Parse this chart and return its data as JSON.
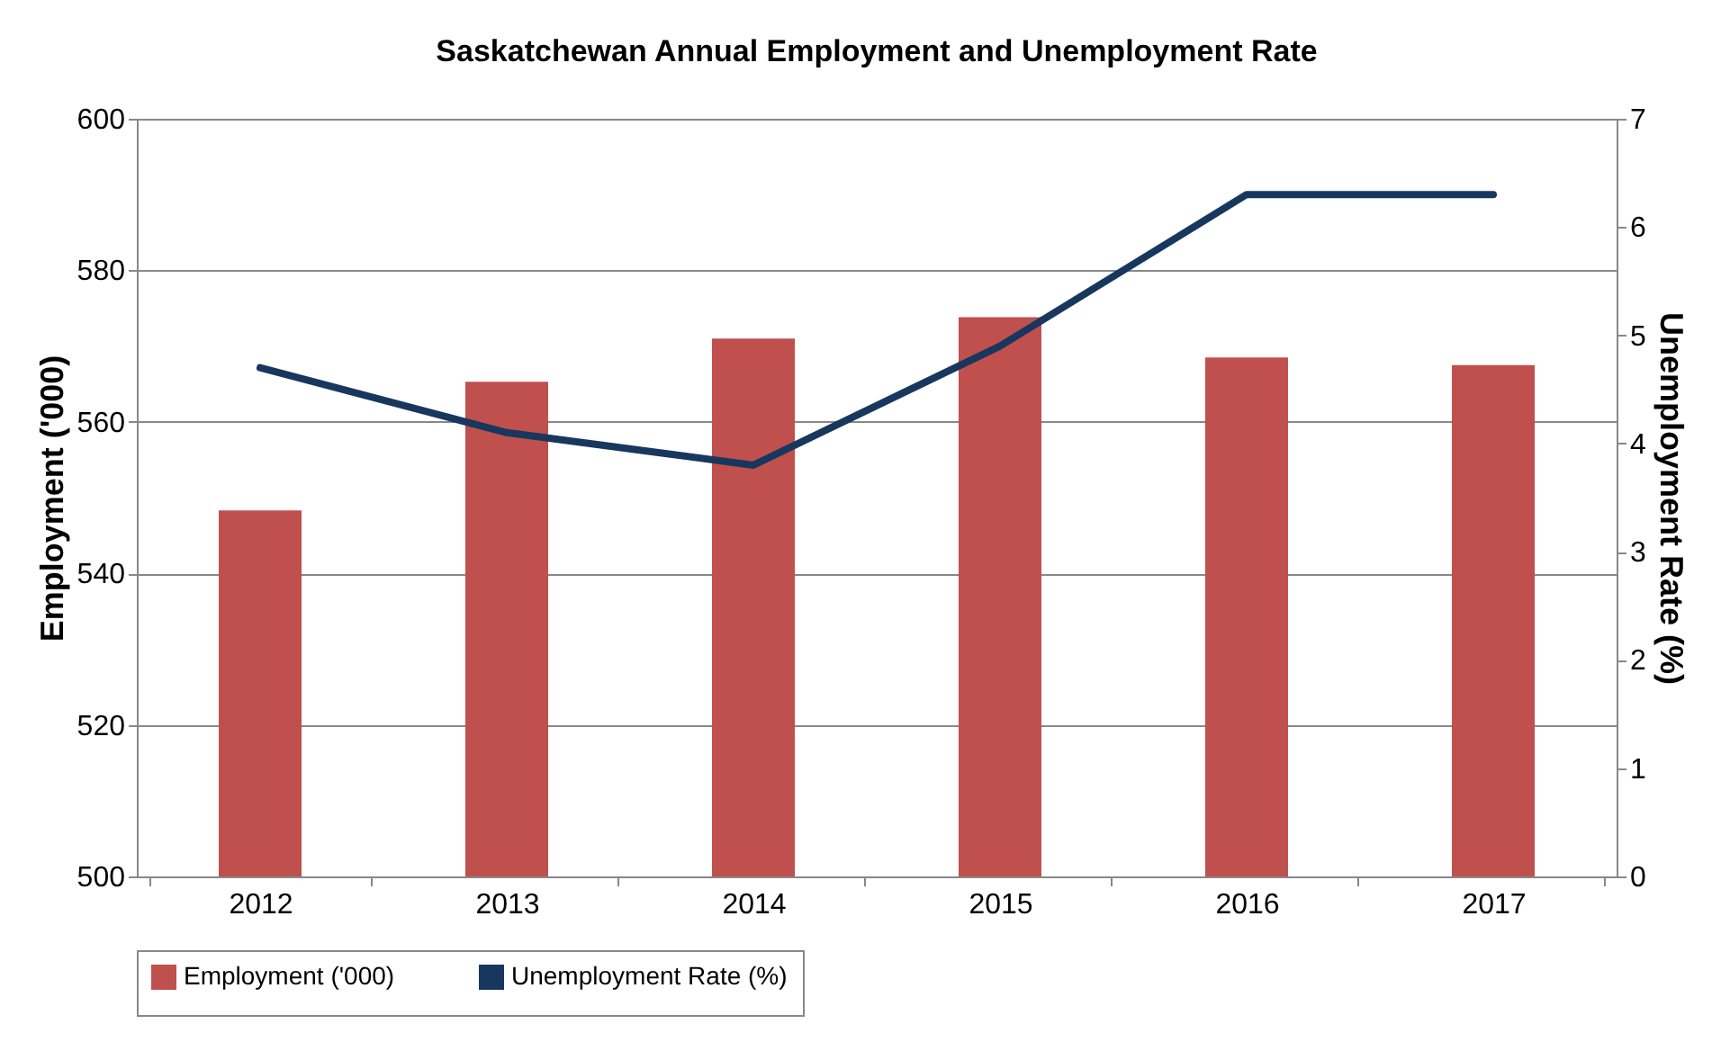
{
  "chart_data": {
    "type": "bar",
    "title": "Saskatchewan Annual Employment and Unemployment Rate",
    "categories": [
      "2012",
      "2013",
      "2014",
      "2015",
      "2016",
      "2017"
    ],
    "series": [
      {
        "name": "Employment ('000)",
        "color": "#c0504d",
        "values": [
          548.3,
          565.3,
          571.0,
          573.8,
          568.5,
          567.5
        ]
      },
      {
        "name": "Unemployment Rate (%)",
        "color": "#17375e",
        "type": "line",
        "axis": "y2",
        "values": [
          4.7,
          4.1,
          3.8,
          4.9,
          6.3,
          6.3
        ]
      }
    ],
    "ylabel": "Employment ('000)",
    "y2label": "Unemployment Rate (%)",
    "ylim": [
      500,
      600
    ],
    "yticks": [
      500,
      520,
      540,
      560,
      580,
      600
    ],
    "y2lim": [
      0,
      7
    ],
    "y2ticks": [
      0,
      1,
      2,
      3,
      4,
      5,
      6,
      7
    ],
    "grid": "y",
    "legend": "bottom",
    "marker": "none",
    "line_style": "solid"
  }
}
